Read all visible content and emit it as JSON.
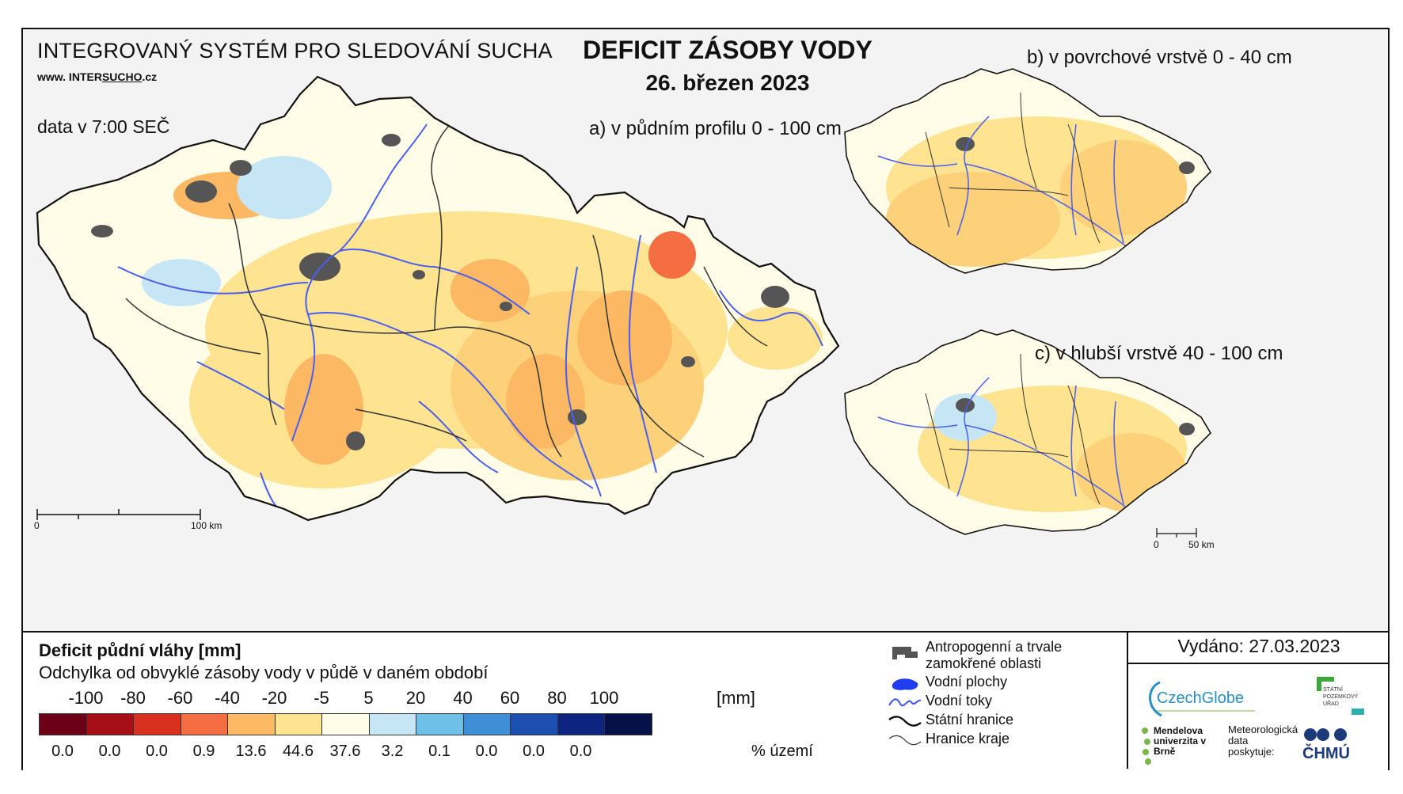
{
  "header": {
    "system_title": "INTEGROVANÝ SYSTÉM PRO SLEDOVÁNÍ SUCHA",
    "url_prefix": "www. INTER",
    "url_brand": "SUCHO",
    "url_suffix": ".cz",
    "data_time": "data v 7:00 SEČ",
    "main_title": "DEFICIT ZÁSOBY VODY",
    "date": "26. březen 2023"
  },
  "maps": {
    "a_label": "a) v půdním profilu 0 - 100 cm",
    "b_label": "b) v povrchové vrstvě 0 - 40 cm",
    "c_label": "c) v hlubší vrstvě 40 - 100 cm",
    "scale_main": {
      "start": "0",
      "end": "100 km"
    },
    "scale_small": {
      "start": "0",
      "end": "50 km"
    }
  },
  "legend": {
    "title": "Deficit půdní vláhy  [mm]",
    "subtitle": "Odchylka od obvyklé zásoby vody v půdě v daném období",
    "unit": "[mm]",
    "percent_label": "% území",
    "ticks": [
      "-100",
      "-80",
      "-60",
      "-40",
      "-20",
      "-5",
      "5",
      "20",
      "40",
      "60",
      "80",
      "100"
    ],
    "classes": [
      {
        "color": "#6b0016",
        "percent": "0.0"
      },
      {
        "color": "#a50f15",
        "percent": "0.0"
      },
      {
        "color": "#d7301f",
        "percent": "0.0"
      },
      {
        "color": "#f46d43",
        "percent": "0.9"
      },
      {
        "color": "#fdb863",
        "percent": "13.6"
      },
      {
        "color": "#fee391",
        "percent": "44.6"
      },
      {
        "color": "#fffde8",
        "percent": "37.6"
      },
      {
        "color": "#c6e6f5",
        "percent": "3.2"
      },
      {
        "color": "#6fc0e8",
        "percent": "0.1"
      },
      {
        "color": "#3f8fd6",
        "percent": "0.0"
      },
      {
        "color": "#1c4fb0",
        "percent": "0.0"
      },
      {
        "color": "#0d2580",
        "percent": "0.0"
      },
      {
        "color": "#061049",
        "percent": ""
      }
    ],
    "items": [
      {
        "icon": "urban-area-icon",
        "label": "Antropogenní a trvale zamokřené oblasti"
      },
      {
        "icon": "water-body-icon",
        "label": "Vodní plochy"
      },
      {
        "icon": "river-icon",
        "label": "Vodní toky"
      },
      {
        "icon": "state-border-icon",
        "label": "Státní hranice"
      },
      {
        "icon": "region-border-icon",
        "label": "Hranice kraje"
      }
    ],
    "issued": "Vydáno: 27.03.2023"
  },
  "logos": {
    "czechglobe": "CzechGlobe",
    "spu": "STÁTNÍ POZEMKOVÝ ÚŘAD",
    "mendelu": "Mendelova univerzita v Brně",
    "met_provider": "Meteorologická data poskytuje:",
    "chmu": "ČHMÚ"
  }
}
